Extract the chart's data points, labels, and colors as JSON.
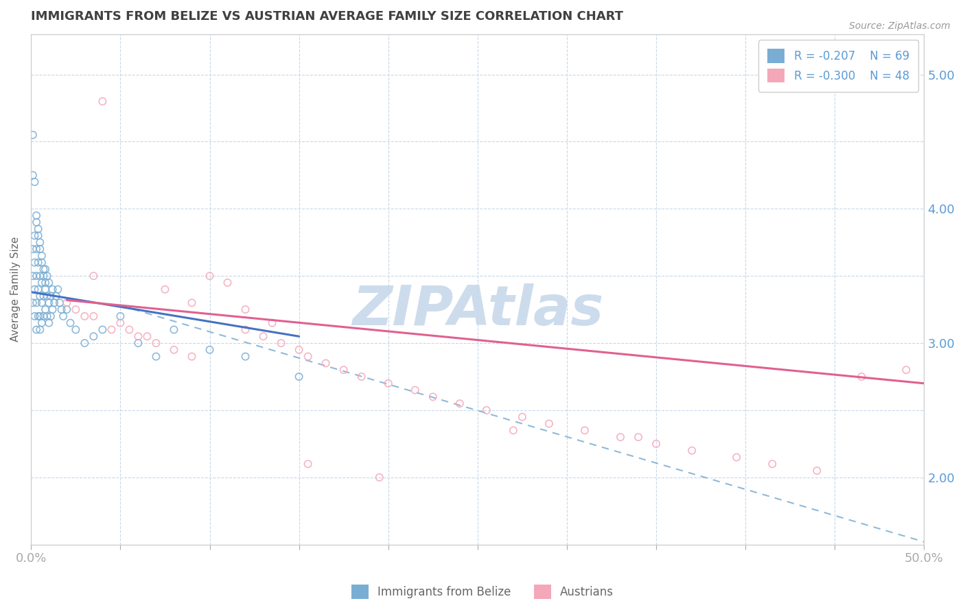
{
  "title": "IMMIGRANTS FROM BELIZE VS AUSTRIAN AVERAGE FAMILY SIZE CORRELATION CHART",
  "source_text": "Source: ZipAtlas.com",
  "ylabel": "Average Family Size",
  "xlim": [
    0.0,
    0.5
  ],
  "ylim": [
    1.5,
    5.3
  ],
  "blue_R": -0.207,
  "blue_N": 69,
  "pink_R": -0.3,
  "pink_N": 48,
  "blue_color": "#7aadd4",
  "pink_color": "#f4a7b9",
  "blue_trend_color": "#4472c4",
  "pink_trend_color": "#e06090",
  "watermark_text": "ZIPAtlas",
  "watermark_color": "#cddcec",
  "watermark_fontsize": 58,
  "background_color": "#ffffff",
  "grid_color": "#c8d8e8",
  "title_color": "#404040",
  "axis_color": "#5b9bd5",
  "legend_label_blue": "Immigrants from Belize",
  "legend_label_pink": "Austrians",
  "blue_scatter_x": [
    0.001,
    0.001,
    0.001,
    0.002,
    0.002,
    0.002,
    0.002,
    0.003,
    0.003,
    0.003,
    0.003,
    0.003,
    0.004,
    0.004,
    0.004,
    0.004,
    0.005,
    0.005,
    0.005,
    0.005,
    0.005,
    0.006,
    0.006,
    0.006,
    0.006,
    0.007,
    0.007,
    0.007,
    0.008,
    0.008,
    0.008,
    0.009,
    0.009,
    0.009,
    0.01,
    0.01,
    0.01,
    0.011,
    0.011,
    0.012,
    0.012,
    0.013,
    0.014,
    0.015,
    0.016,
    0.017,
    0.018,
    0.02,
    0.022,
    0.025,
    0.03,
    0.035,
    0.04,
    0.05,
    0.06,
    0.07,
    0.08,
    0.1,
    0.12,
    0.15,
    0.001,
    0.001,
    0.002,
    0.003,
    0.004,
    0.005,
    0.006,
    0.007,
    0.008
  ],
  "blue_scatter_y": [
    3.3,
    3.5,
    3.7,
    3.2,
    3.4,
    3.6,
    3.8,
    3.1,
    3.3,
    3.5,
    3.7,
    3.9,
    3.2,
    3.4,
    3.6,
    3.8,
    3.1,
    3.2,
    3.35,
    3.5,
    3.7,
    3.15,
    3.3,
    3.45,
    3.6,
    3.2,
    3.35,
    3.5,
    3.25,
    3.4,
    3.55,
    3.2,
    3.35,
    3.5,
    3.15,
    3.3,
    3.45,
    3.2,
    3.35,
    3.25,
    3.4,
    3.3,
    3.35,
    3.4,
    3.3,
    3.25,
    3.2,
    3.25,
    3.15,
    3.1,
    3.0,
    3.05,
    3.1,
    3.2,
    3.0,
    2.9,
    3.1,
    2.95,
    2.9,
    2.75,
    4.55,
    4.25,
    4.2,
    3.95,
    3.85,
    3.75,
    3.65,
    3.55,
    3.45
  ],
  "pink_scatter_x": [
    0.02,
    0.025,
    0.03,
    0.035,
    0.04,
    0.045,
    0.05,
    0.055,
    0.06,
    0.065,
    0.07,
    0.08,
    0.09,
    0.1,
    0.11,
    0.12,
    0.13,
    0.14,
    0.15,
    0.155,
    0.165,
    0.175,
    0.185,
    0.2,
    0.215,
    0.225,
    0.24,
    0.255,
    0.275,
    0.29,
    0.31,
    0.33,
    0.35,
    0.37,
    0.395,
    0.415,
    0.44,
    0.465,
    0.49,
    0.035,
    0.075,
    0.09,
    0.12,
    0.135,
    0.155,
    0.195,
    0.27,
    0.34
  ],
  "pink_scatter_y": [
    3.3,
    3.25,
    3.2,
    3.2,
    4.8,
    3.1,
    3.15,
    3.1,
    3.05,
    3.05,
    3.0,
    2.95,
    2.9,
    3.5,
    3.45,
    3.1,
    3.05,
    3.0,
    2.95,
    2.9,
    2.85,
    2.8,
    2.75,
    2.7,
    2.65,
    2.6,
    2.55,
    2.5,
    2.45,
    2.4,
    2.35,
    2.3,
    2.25,
    2.2,
    2.15,
    2.1,
    2.05,
    2.75,
    2.8,
    3.5,
    3.4,
    3.3,
    3.25,
    3.15,
    2.1,
    2.0,
    2.35,
    2.3
  ],
  "blue_trend_x0": 0.0,
  "blue_trend_x1": 0.15,
  "blue_trend_y0": 3.38,
  "blue_trend_y1": 3.05,
  "pink_trend_x0": 0.02,
  "pink_trend_x1": 0.5,
  "pink_trend_y0": 3.32,
  "pink_trend_y1": 2.7,
  "dash_trend_x0": 0.05,
  "dash_trend_x1": 0.5,
  "dash_trend_y0": 3.28,
  "dash_trend_y1": 1.52
}
